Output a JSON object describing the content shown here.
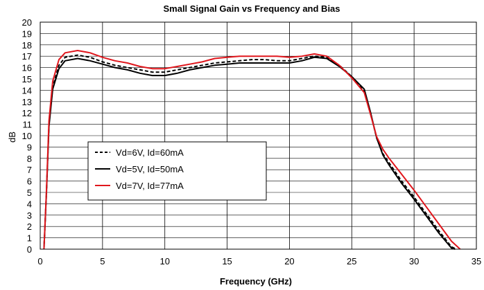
{
  "chart_data": {
    "type": "line",
    "title": "Small Signal Gain vs Frequency and Bias",
    "xlabel": "Frequency (GHz)",
    "ylabel": "dB",
    "xlim": [
      0,
      35
    ],
    "ylim": [
      0,
      20
    ],
    "xticks": [
      0,
      5,
      10,
      15,
      20,
      25,
      30,
      35
    ],
    "yticks": [
      0,
      1,
      2,
      3,
      4,
      5,
      6,
      7,
      8,
      9,
      10,
      11,
      12,
      13,
      14,
      15,
      16,
      17,
      18,
      19,
      20
    ],
    "grid": true,
    "legend_position": "center-left",
    "series": [
      {
        "name": "Vd=6V, Id=60mA",
        "color": "#000000",
        "dash": "dashed",
        "x": [
          0.3,
          0.5,
          0.7,
          1.0,
          1.5,
          2,
          3,
          4,
          5,
          6,
          7,
          8,
          9,
          10,
          11,
          12,
          13,
          14,
          15,
          16,
          17,
          18,
          19,
          20,
          21,
          22,
          23,
          24,
          25,
          26,
          26.5,
          27,
          27.5,
          28,
          29,
          30,
          31,
          32,
          33,
          33.4
        ],
        "y": [
          0,
          5,
          11,
          14.3,
          16.2,
          16.9,
          17.1,
          16.9,
          16.5,
          16.2,
          16.0,
          15.8,
          15.6,
          15.6,
          15.8,
          16.0,
          16.2,
          16.4,
          16.5,
          16.6,
          16.7,
          16.7,
          16.6,
          16.6,
          16.8,
          17.0,
          16.9,
          16.2,
          15.2,
          14.0,
          12.0,
          9.8,
          8.4,
          7.6,
          6.0,
          4.6,
          3.1,
          1.6,
          0.2,
          0
        ]
      },
      {
        "name": "Vd=5V, Id=50mA",
        "color": "#000000",
        "dash": "solid",
        "x": [
          0.3,
          0.5,
          0.7,
          1.0,
          1.5,
          2,
          3,
          4,
          5,
          6,
          7,
          8,
          9,
          10,
          11,
          12,
          13,
          14,
          15,
          16,
          17,
          18,
          19,
          20,
          21,
          22,
          23,
          24,
          25,
          26,
          26.5,
          27,
          27.5,
          28,
          29,
          30,
          31,
          32,
          33,
          33.3
        ],
        "y": [
          0,
          5,
          10.8,
          14.1,
          15.9,
          16.6,
          16.8,
          16.6,
          16.3,
          16.0,
          15.8,
          15.5,
          15.3,
          15.3,
          15.5,
          15.8,
          16.0,
          16.2,
          16.3,
          16.4,
          16.4,
          16.4,
          16.4,
          16.4,
          16.6,
          16.9,
          16.8,
          16.1,
          15.2,
          14.1,
          12.1,
          9.8,
          8.3,
          7.4,
          5.8,
          4.4,
          2.9,
          1.4,
          0.1,
          0
        ]
      },
      {
        "name": "Vd=7V, Id=77mA",
        "color": "#e0161c",
        "dash": "solid",
        "x": [
          0.3,
          0.5,
          0.7,
          1.0,
          1.5,
          2,
          3,
          4,
          5,
          6,
          7,
          8,
          9,
          10,
          11,
          12,
          13,
          14,
          15,
          16,
          17,
          18,
          19,
          20,
          21,
          22,
          23,
          24,
          25,
          26,
          26.5,
          27,
          27.5,
          28,
          29,
          30,
          31,
          32,
          33,
          33.7
        ],
        "y": [
          0,
          5.2,
          11.3,
          14.8,
          16.7,
          17.3,
          17.5,
          17.3,
          16.9,
          16.6,
          16.4,
          16.1,
          15.9,
          15.9,
          16.1,
          16.3,
          16.5,
          16.8,
          16.9,
          17.0,
          17.0,
          17.0,
          17.0,
          16.9,
          17.0,
          17.2,
          17.0,
          16.2,
          15.1,
          13.8,
          11.9,
          9.9,
          8.8,
          8.0,
          6.6,
          5.2,
          3.7,
          2.2,
          0.7,
          0
        ]
      }
    ]
  }
}
